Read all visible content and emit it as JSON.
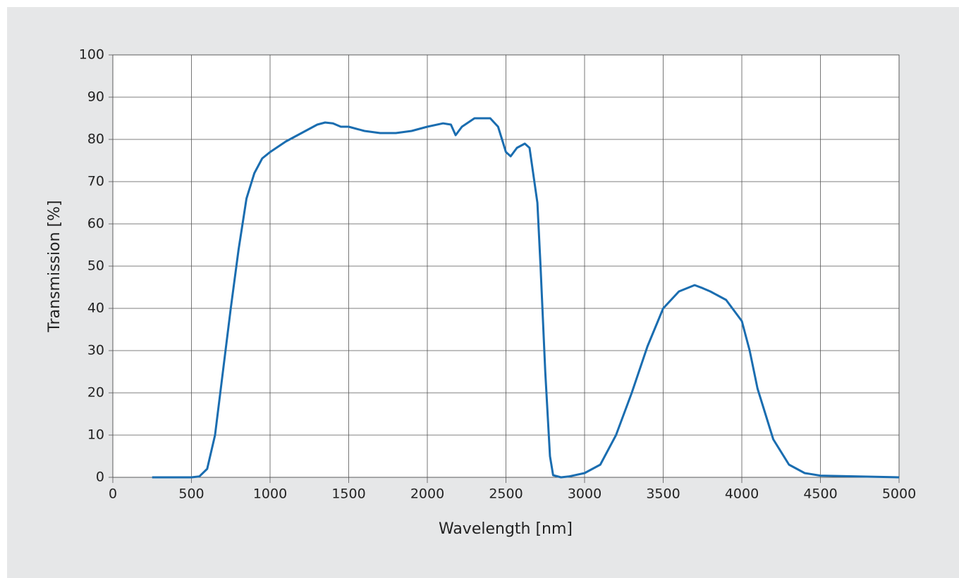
{
  "chart_data": {
    "type": "line",
    "xlabel": "Wavelength [nm]",
    "ylabel": "Transmission [%]",
    "x": [
      250,
      500,
      550,
      600,
      650,
      700,
      750,
      800,
      850,
      900,
      950,
      1000,
      1100,
      1200,
      1300,
      1350,
      1400,
      1450,
      1500,
      1600,
      1700,
      1800,
      1900,
      2000,
      2100,
      2150,
      2180,
      2220,
      2300,
      2400,
      2450,
      2500,
      2530,
      2570,
      2620,
      2650,
      2700,
      2720,
      2750,
      2780,
      2800,
      2850,
      2900,
      3000,
      3100,
      3200,
      3300,
      3400,
      3500,
      3600,
      3700,
      3750,
      3800,
      3900,
      4000,
      4050,
      4100,
      4200,
      4300,
      4400,
      4500,
      5000
    ],
    "series": [
      {
        "color": "#1a6db0",
        "values": [
          0,
          0,
          0.2,
          2,
          10,
          25,
          40,
          54,
          66,
          72,
          75.5,
          77,
          79.5,
          81.5,
          83.5,
          84,
          83.8,
          83,
          83,
          82,
          81.5,
          81.5,
          82,
          83,
          83.8,
          83.5,
          81,
          83,
          85,
          85,
          83,
          77,
          76,
          78,
          79,
          78,
          65,
          50,
          25,
          5,
          0.5,
          0,
          0.2,
          1,
          3,
          10,
          20,
          31,
          40,
          44,
          45.5,
          44.8,
          44,
          42,
          37,
          30,
          21,
          9,
          3,
          1,
          0.4,
          0
        ]
      }
    ],
    "xlim": [
      0,
      5000
    ],
    "xticks": [
      0,
      500,
      1000,
      1500,
      2000,
      2500,
      3000,
      3500,
      4000,
      4500,
      5000
    ],
    "ylim": [
      0,
      100
    ],
    "yticks": [
      0,
      10,
      20,
      30,
      40,
      50,
      60,
      70,
      80,
      90,
      100
    ],
    "grid": true
  }
}
